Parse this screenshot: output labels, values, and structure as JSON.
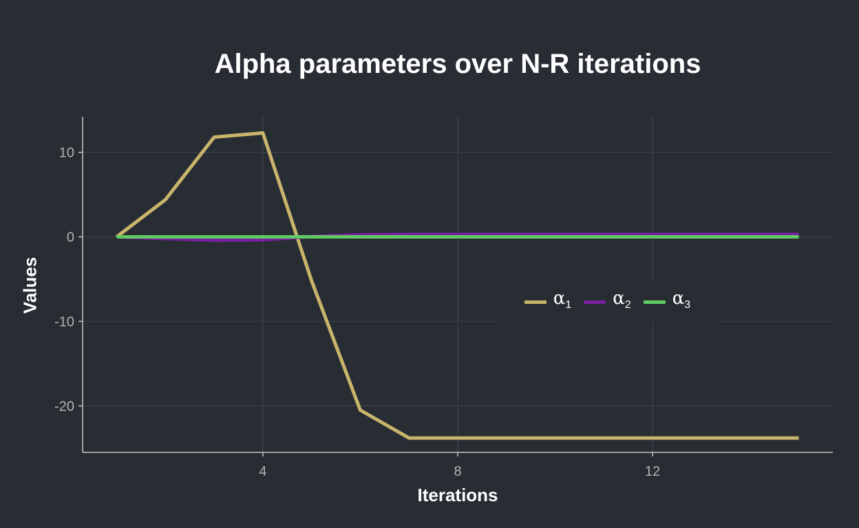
{
  "chart_data": {
    "type": "line",
    "title": "Alpha parameters over N-R iterations",
    "xlabel": "Iterations",
    "ylabel": "Values",
    "xlim": [
      0.3,
      15.7
    ],
    "ylim": [
      -25.5,
      14.2
    ],
    "xticks": [
      4,
      8,
      12
    ],
    "yticks": [
      -20,
      -10,
      0,
      10
    ],
    "ytick_labels": [
      "-20",
      "-10",
      "0",
      "10"
    ],
    "grid": true,
    "legend_position": "center-right",
    "x": [
      1,
      2,
      3,
      4,
      5,
      6,
      7,
      8,
      9,
      10,
      11,
      12,
      13,
      14,
      15
    ],
    "series": [
      {
        "name": "α",
        "sub": "1",
        "color": "#c8b56b",
        "values": [
          0,
          4.4,
          11.8,
          12.3,
          -5.2,
          -20.5,
          -23.8,
          -23.8,
          -23.8,
          -23.8,
          -23.8,
          -23.8,
          -23.8,
          -23.8,
          -23.8
        ]
      },
      {
        "name": "α",
        "sub": "2",
        "color": "#7a1fa2",
        "values": [
          0,
          -0.2,
          -0.4,
          -0.35,
          0.05,
          0.25,
          0.3,
          0.3,
          0.3,
          0.3,
          0.3,
          0.3,
          0.3,
          0.3,
          0.3
        ]
      },
      {
        "name": "α",
        "sub": "3",
        "color": "#5fcb62",
        "values": [
          0,
          0,
          0,
          0,
          0,
          0,
          0,
          0,
          0,
          0,
          0,
          0,
          0,
          0,
          0
        ]
      }
    ]
  }
}
